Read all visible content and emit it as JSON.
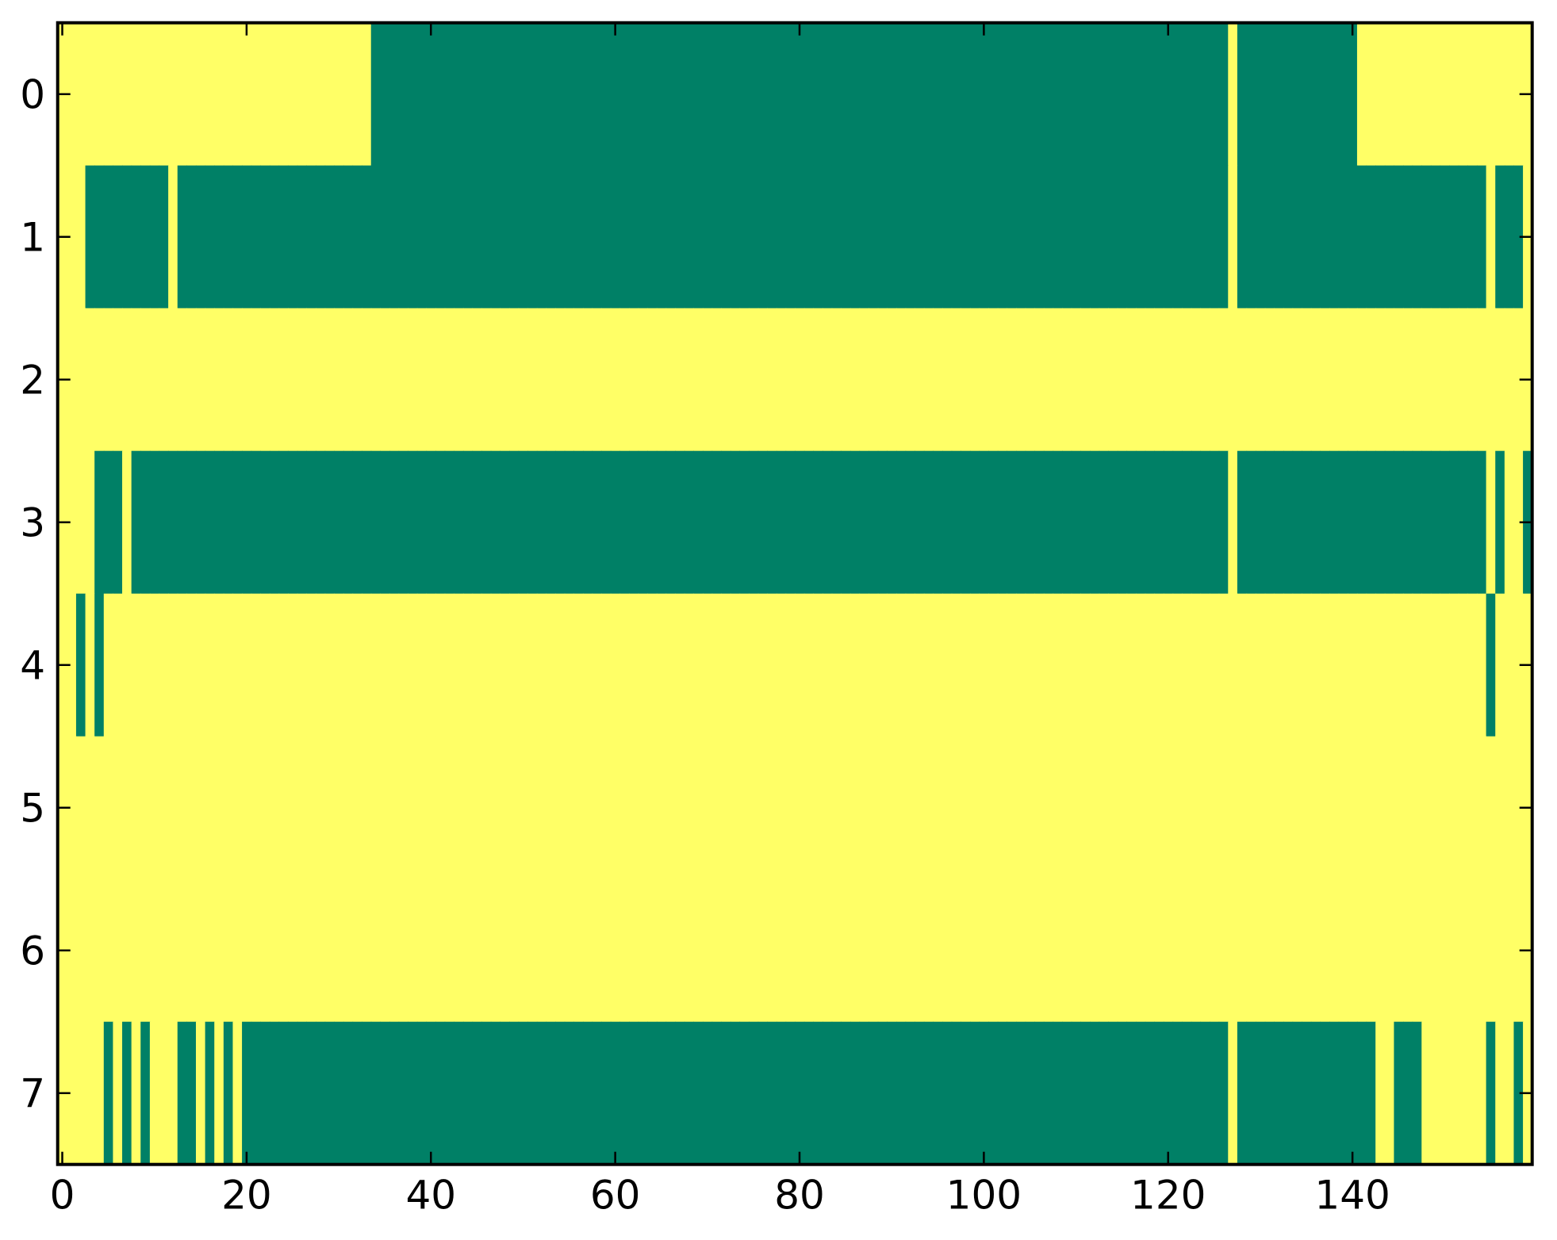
{
  "chart_data": {
    "type": "heatmap",
    "title": "",
    "xlabel": "",
    "ylabel": "",
    "xlim": [
      -0.5,
      159.5
    ],
    "ylim": [
      7.5,
      -0.5
    ],
    "n_rows": 8,
    "n_cols": 160,
    "x_ticks": [
      0,
      20,
      40,
      60,
      80,
      100,
      120,
      140
    ],
    "x_tick_labels": [
      "0",
      "20",
      "40",
      "60",
      "80",
      "100",
      "120",
      "140"
    ],
    "y_ticks": [
      0,
      1,
      2,
      3,
      4,
      5,
      6,
      7
    ],
    "y_tick_labels": [
      "0",
      "1",
      "2",
      "3",
      "4",
      "5",
      "6",
      "7"
    ],
    "grid": false,
    "colormap": "summer",
    "value_colors": {
      "0": "#008066",
      "1": "#ffff66"
    },
    "rows_run_length": [
      [
        [
          1,
          34
        ],
        [
          0,
          93
        ],
        [
          1,
          1
        ],
        [
          0,
          13
        ],
        [
          1,
          19
        ]
      ],
      [
        [
          1,
          3
        ],
        [
          0,
          9
        ],
        [
          1,
          1
        ],
        [
          0,
          114
        ],
        [
          1,
          1
        ],
        [
          0,
          27
        ],
        [
          1,
          1
        ],
        [
          0,
          3
        ],
        [
          1,
          1
        ]
      ],
      [
        [
          1,
          160
        ]
      ],
      [
        [
          1,
          4
        ],
        [
          0,
          3
        ],
        [
          1,
          1
        ],
        [
          0,
          119
        ],
        [
          1,
          1
        ],
        [
          0,
          27
        ],
        [
          1,
          1
        ],
        [
          0,
          1
        ],
        [
          1,
          2
        ],
        [
          0,
          1
        ]
      ],
      [
        [
          1,
          2
        ],
        [
          0,
          1
        ],
        [
          1,
          1
        ],
        [
          0,
          1
        ],
        [
          1,
          150
        ],
        [
          0,
          1
        ],
        [
          1,
          4
        ]
      ],
      [
        [
          1,
          160
        ]
      ],
      [
        [
          1,
          160
        ]
      ],
      [
        [
          1,
          5
        ],
        [
          0,
          1
        ],
        [
          1,
          1
        ],
        [
          0,
          1
        ],
        [
          1,
          1
        ],
        [
          0,
          1
        ],
        [
          1,
          3
        ],
        [
          0,
          2
        ],
        [
          1,
          1
        ],
        [
          0,
          1
        ],
        [
          1,
          1
        ],
        [
          0,
          1
        ],
        [
          1,
          1
        ],
        [
          0,
          107
        ],
        [
          1,
          1
        ],
        [
          0,
          15
        ],
        [
          1,
          2
        ],
        [
          0,
          3
        ],
        [
          1,
          7
        ],
        [
          0,
          1
        ],
        [
          1,
          2
        ],
        [
          0,
          1
        ],
        [
          1,
          1
        ]
      ]
    ]
  }
}
